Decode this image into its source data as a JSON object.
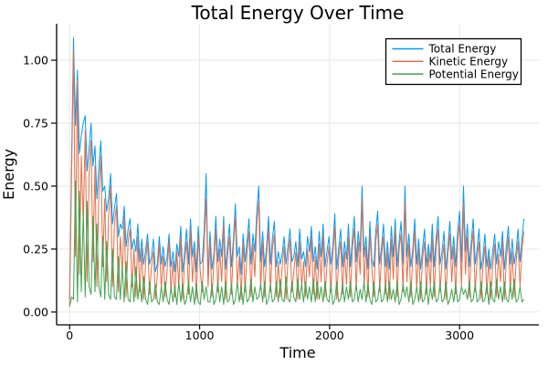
{
  "figure": {
    "background": "#ffffff"
  },
  "chart_data": {
    "type": "line",
    "title": "Total Energy Over Time",
    "xlabel": "Time",
    "ylabel": "Energy",
    "xlim": [
      -100,
      3610
    ],
    "ylim": [
      -0.051,
      1.145
    ],
    "xticks": [
      0,
      1000,
      2000,
      3000
    ],
    "xtick_labels": [
      "0",
      "1000",
      "2000",
      "3000"
    ],
    "yticks": [
      0,
      0.25,
      0.5,
      0.75,
      1.0
    ],
    "ytick_labels": [
      "0.00",
      "0.25",
      "0.50",
      "0.75",
      "1.00"
    ],
    "grid": true,
    "grid_color": "#e6e6e6",
    "axis_color": "#000000",
    "legend": {
      "position": "top-right",
      "border_color": "#000000",
      "background": "#ffffff",
      "entries": [
        "Total Energy",
        "Kinetic Energy",
        "Potential Energy"
      ]
    },
    "x_start": 0,
    "x_step": 15,
    "series": [
      {
        "name": "Total Energy",
        "color": "#009afa",
        "values": [
          0.05,
          0.61,
          1.09,
          0.74,
          0.96,
          0.63,
          0.7,
          0.75,
          0.78,
          0.56,
          0.65,
          0.75,
          0.58,
          0.66,
          0.45,
          0.58,
          0.68,
          0.48,
          0.5,
          0.4,
          0.45,
          0.55,
          0.35,
          0.41,
          0.47,
          0.3,
          0.35,
          0.33,
          0.42,
          0.26,
          0.33,
          0.37,
          0.25,
          0.29,
          0.24,
          0.35,
          0.2,
          0.29,
          0.19,
          0.25,
          0.31,
          0.19,
          0.22,
          0.29,
          0.16,
          0.19,
          0.3,
          0.19,
          0.26,
          0.18,
          0.22,
          0.31,
          0.18,
          0.24,
          0.16,
          0.27,
          0.22,
          0.34,
          0.16,
          0.24,
          0.33,
          0.19,
          0.37,
          0.22,
          0.28,
          0.16,
          0.34,
          0.19,
          0.2,
          0.32,
          0.55,
          0.14,
          0.32,
          0.17,
          0.23,
          0.38,
          0.2,
          0.29,
          0.22,
          0.38,
          0.17,
          0.26,
          0.35,
          0.18,
          0.29,
          0.43,
          0.22,
          0.26,
          0.15,
          0.31,
          0.2,
          0.28,
          0.37,
          0.19,
          0.31,
          0.24,
          0.4,
          0.5,
          0.2,
          0.32,
          0.18,
          0.25,
          0.38,
          0.19,
          0.29,
          0.36,
          0.18,
          0.24,
          0.19,
          0.23,
          0.3,
          0.19,
          0.26,
          0.33,
          0.2,
          0.22,
          0.28,
          0.18,
          0.33,
          0.21,
          0.24,
          0.18,
          0.3,
          0.24,
          0.34,
          0.2,
          0.26,
          0.17,
          0.32,
          0.22,
          0.35,
          0.18,
          0.24,
          0.3,
          0.19,
          0.26,
          0.39,
          0.17,
          0.25,
          0.33,
          0.18,
          0.28,
          0.21,
          0.35,
          0.18,
          0.29,
          0.38,
          0.2,
          0.32,
          0.24,
          0.5,
          0.22,
          0.3,
          0.17,
          0.36,
          0.21,
          0.18,
          0.32,
          0.4,
          0.19,
          0.26,
          0.35,
          0.18,
          0.28,
          0.17,
          0.34,
          0.22,
          0.37,
          0.18,
          0.28,
          0.36,
          0.19,
          0.5,
          0.22,
          0.31,
          0.18,
          0.25,
          0.37,
          0.19,
          0.29,
          0.17,
          0.25,
          0.33,
          0.18,
          0.27,
          0.2,
          0.35,
          0.18,
          0.3,
          0.38,
          0.19,
          0.24,
          0.32,
          0.17,
          0.26,
          0.36,
          0.21,
          0.3,
          0.18,
          0.32,
          0.4,
          0.2,
          0.5,
          0.24,
          0.35,
          0.18,
          0.28,
          0.37,
          0.19,
          0.25,
          0.33,
          0.17,
          0.22,
          0.31,
          0.18,
          0.25,
          0.17,
          0.24,
          0.31,
          0.19,
          0.28,
          0.22,
          0.32,
          0.17,
          0.26,
          0.34,
          0.19,
          0.29,
          0.19,
          0.24,
          0.33,
          0.2,
          0.29,
          0.37
        ]
      },
      {
        "name": "Kinetic Energy",
        "color": "#e36f47",
        "values": [
          0.03,
          0.55,
          1.04,
          0.22,
          0.92,
          0.15,
          0.62,
          0.35,
          0.72,
          0.12,
          0.55,
          0.68,
          0.2,
          0.58,
          0.1,
          0.48,
          0.62,
          0.18,
          0.45,
          0.12,
          0.38,
          0.5,
          0.1,
          0.35,
          0.42,
          0.08,
          0.3,
          0.15,
          0.38,
          0.06,
          0.28,
          0.33,
          0.1,
          0.25,
          0.06,
          0.3,
          0.08,
          0.25,
          0.05,
          0.2,
          0.28,
          0.07,
          0.18,
          0.24,
          0.05,
          0.15,
          0.27,
          0.09,
          0.22,
          0.06,
          0.17,
          0.28,
          0.08,
          0.2,
          0.06,
          0.24,
          0.1,
          0.3,
          0.05,
          0.21,
          0.28,
          0.07,
          0.33,
          0.12,
          0.25,
          0.05,
          0.3,
          0.16,
          0.08,
          0.27,
          0.45,
          0.1,
          0.28,
          0.06,
          0.2,
          0.33,
          0.08,
          0.25,
          0.12,
          0.35,
          0.05,
          0.22,
          0.3,
          0.07,
          0.26,
          0.38,
          0.1,
          0.22,
          0.05,
          0.28,
          0.08,
          0.24,
          0.32,
          0.06,
          0.27,
          0.14,
          0.35,
          0.44,
          0.09,
          0.28,
          0.06,
          0.22,
          0.33,
          0.08,
          0.25,
          0.31,
          0.06,
          0.2,
          0.06,
          0.18,
          0.26,
          0.05,
          0.21,
          0.29,
          0.08,
          0.16,
          0.24,
          0.05,
          0.28,
          0.1,
          0.2,
          0.06,
          0.25,
          0.14,
          0.3,
          0.07,
          0.22,
          0.05,
          0.27,
          0.12,
          0.31,
          0.06,
          0.19,
          0.26,
          0.08,
          0.23,
          0.34,
          0.05,
          0.21,
          0.28,
          0.07,
          0.24,
          0.11,
          0.3,
          0.06,
          0.25,
          0.33,
          0.09,
          0.28,
          0.15,
          0.45,
          0.1,
          0.26,
          0.06,
          0.31,
          0.18,
          0.06,
          0.28,
          0.35,
          0.08,
          0.22,
          0.3,
          0.07,
          0.24,
          0.05,
          0.29,
          0.13,
          0.33,
          0.06,
          0.25,
          0.31,
          0.08,
          0.44,
          0.12,
          0.27,
          0.06,
          0.22,
          0.32,
          0.09,
          0.25,
          0.05,
          0.21,
          0.28,
          0.07,
          0.24,
          0.1,
          0.3,
          0.06,
          0.26,
          0.33,
          0.08,
          0.2,
          0.27,
          0.05,
          0.23,
          0.31,
          0.12,
          0.26,
          0.07,
          0.28,
          0.35,
          0.1,
          0.43,
          0.15,
          0.3,
          0.06,
          0.24,
          0.32,
          0.08,
          0.21,
          0.28,
          0.05,
          0.18,
          0.26,
          0.07,
          0.22,
          0.05,
          0.19,
          0.27,
          0.06,
          0.23,
          0.12,
          0.28,
          0.05,
          0.21,
          0.3,
          0.08,
          0.24,
          0.06,
          0.2,
          0.28,
          0.1,
          0.25,
          0.32
        ]
      },
      {
        "name": "Potential Energy",
        "color": "#3ea44e",
        "values": [
          0.02,
          0.06,
          0.05,
          0.52,
          0.04,
          0.48,
          0.08,
          0.4,
          0.06,
          0.44,
          0.1,
          0.07,
          0.38,
          0.08,
          0.35,
          0.1,
          0.06,
          0.3,
          0.05,
          0.28,
          0.07,
          0.05,
          0.25,
          0.06,
          0.05,
          0.22,
          0.05,
          0.18,
          0.04,
          0.2,
          0.05,
          0.04,
          0.15,
          0.04,
          0.18,
          0.05,
          0.12,
          0.04,
          0.14,
          0.05,
          0.03,
          0.12,
          0.04,
          0.05,
          0.11,
          0.04,
          0.03,
          0.1,
          0.04,
          0.12,
          0.05,
          0.03,
          0.1,
          0.04,
          0.1,
          0.03,
          0.12,
          0.04,
          0.11,
          0.03,
          0.05,
          0.12,
          0.04,
          0.1,
          0.03,
          0.11,
          0.04,
          0.03,
          0.12,
          0.05,
          0.1,
          0.04,
          0.04,
          0.11,
          0.03,
          0.05,
          0.12,
          0.04,
          0.1,
          0.03,
          0.12,
          0.04,
          0.05,
          0.11,
          0.03,
          0.05,
          0.12,
          0.04,
          0.1,
          0.03,
          0.12,
          0.04,
          0.05,
          0.13,
          0.04,
          0.1,
          0.05,
          0.06,
          0.11,
          0.04,
          0.12,
          0.03,
          0.05,
          0.11,
          0.04,
          0.05,
          0.12,
          0.04,
          0.13,
          0.05,
          0.04,
          0.14,
          0.05,
          0.04,
          0.12,
          0.06,
          0.04,
          0.13,
          0.05,
          0.11,
          0.04,
          0.12,
          0.05,
          0.1,
          0.04,
          0.13,
          0.04,
          0.12,
          0.05,
          0.1,
          0.04,
          0.12,
          0.05,
          0.04,
          0.11,
          0.03,
          0.05,
          0.12,
          0.04,
          0.05,
          0.11,
          0.04,
          0.1,
          0.05,
          0.12,
          0.04,
          0.05,
          0.11,
          0.04,
          0.09,
          0.05,
          0.12,
          0.04,
          0.11,
          0.05,
          0.03,
          0.12,
          0.04,
          0.05,
          0.11,
          0.04,
          0.05,
          0.11,
          0.04,
          0.12,
          0.05,
          0.09,
          0.04,
          0.12,
          0.03,
          0.05,
          0.11,
          0.06,
          0.1,
          0.04,
          0.12,
          0.03,
          0.05,
          0.1,
          0.04,
          0.12,
          0.04,
          0.05,
          0.11,
          0.03,
          0.1,
          0.05,
          0.12,
          0.04,
          0.05,
          0.11,
          0.04,
          0.05,
          0.12,
          0.03,
          0.05,
          0.09,
          0.04,
          0.11,
          0.04,
          0.05,
          0.1,
          0.07,
          0.09,
          0.05,
          0.12,
          0.04,
          0.05,
          0.11,
          0.04,
          0.05,
          0.12,
          0.04,
          0.05,
          0.11,
          0.03,
          0.12,
          0.05,
          0.04,
          0.13,
          0.05,
          0.1,
          0.04,
          0.12,
          0.05,
          0.04,
          0.11,
          0.05,
          0.13,
          0.04,
          0.05,
          0.1,
          0.04,
          0.05
        ]
      }
    ]
  }
}
